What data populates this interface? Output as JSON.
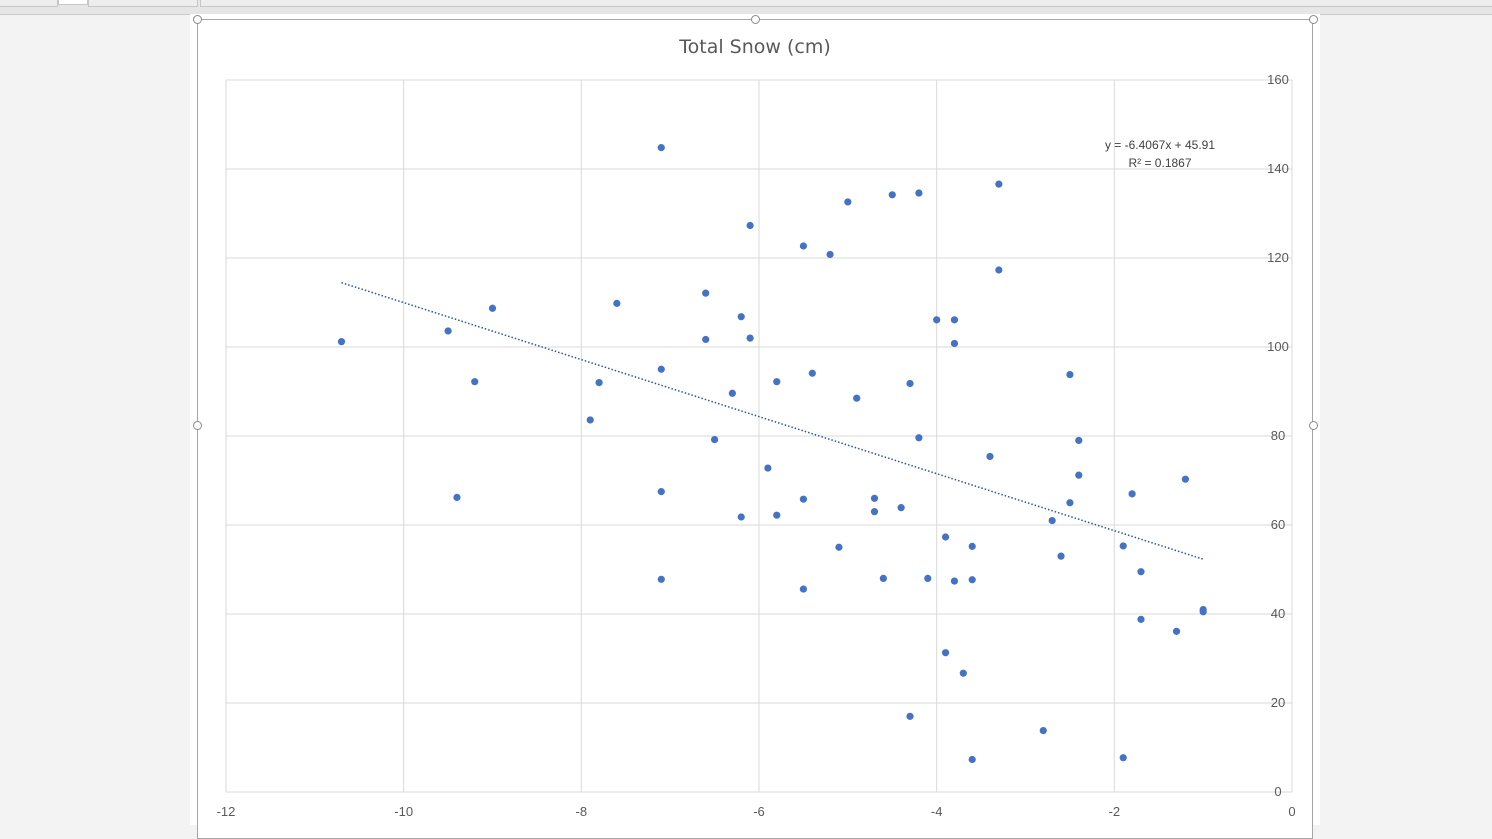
{
  "chart_data": {
    "type": "scatter",
    "title": "Total Snow (cm)",
    "xlabel": "",
    "ylabel": "",
    "xlim": [
      -12,
      0
    ],
    "ylim": [
      0,
      160
    ],
    "x_ticks": [
      -12,
      -10,
      -8,
      -6,
      -4,
      -2,
      0
    ],
    "y_ticks": [
      0,
      20,
      40,
      60,
      80,
      100,
      120,
      140,
      160
    ],
    "x_tick_labels": [
      "-12",
      "-10",
      "-8",
      "-6",
      "-4",
      "-2",
      "0"
    ],
    "y_tick_labels": [
      "0",
      "20",
      "40",
      "60",
      "80",
      "100",
      "120",
      "140",
      "160"
    ],
    "grid": true,
    "y_axis_side": "right",
    "marker_color": "#4472c4",
    "trendline": {
      "type": "linear",
      "style": "dotted",
      "color": "#2f5597",
      "slope": -6.4067,
      "intercept": 45.91,
      "x_range": [
        -10.7,
        -1.0
      ],
      "equation": "y = -6.4067x + 45.91",
      "r_squared": "R² = 0.1867"
    },
    "series": [
      {
        "points": [
          [
            -10.7,
            101.2
          ],
          [
            -9.5,
            103.6
          ],
          [
            -9.4,
            66.2
          ],
          [
            -9.2,
            92.2
          ],
          [
            -9.0,
            108.7
          ],
          [
            -7.9,
            83.6
          ],
          [
            -7.8,
            92.0
          ],
          [
            -7.6,
            109.8
          ],
          [
            -7.1,
            144.8
          ],
          [
            -7.1,
            95.0
          ],
          [
            -7.1,
            67.5
          ],
          [
            -7.1,
            47.8
          ],
          [
            -6.6,
            112.1
          ],
          [
            -6.6,
            101.7
          ],
          [
            -6.5,
            79.2
          ],
          [
            -6.3,
            89.6
          ],
          [
            -6.2,
            106.8
          ],
          [
            -6.2,
            61.8
          ],
          [
            -6.1,
            127.3
          ],
          [
            -6.1,
            102.0
          ],
          [
            -5.9,
            72.8
          ],
          [
            -5.8,
            92.2
          ],
          [
            -5.8,
            62.2
          ],
          [
            -5.5,
            122.7
          ],
          [
            -5.5,
            65.8
          ],
          [
            -5.5,
            45.6
          ],
          [
            -5.4,
            94.1
          ],
          [
            -5.2,
            120.8
          ],
          [
            -5.1,
            55.0
          ],
          [
            -5.0,
            132.6
          ],
          [
            -4.9,
            88.5
          ],
          [
            -4.7,
            66.0
          ],
          [
            -4.7,
            63.0
          ],
          [
            -4.6,
            48.0
          ],
          [
            -4.5,
            134.2
          ],
          [
            -4.4,
            63.9
          ],
          [
            -4.3,
            91.8
          ],
          [
            -4.3,
            17.0
          ],
          [
            -4.2,
            134.6
          ],
          [
            -4.2,
            79.6
          ],
          [
            -4.1,
            48.0
          ],
          [
            -4.0,
            106.1
          ],
          [
            -3.9,
            57.3
          ],
          [
            -3.9,
            31.3
          ],
          [
            -3.8,
            106.1
          ],
          [
            -3.8,
            100.8
          ],
          [
            -3.8,
            47.4
          ],
          [
            -3.7,
            26.7
          ],
          [
            -3.6,
            55.2
          ],
          [
            -3.6,
            47.7
          ],
          [
            -3.6,
            7.3
          ],
          [
            -3.4,
            75.4
          ],
          [
            -3.3,
            136.6
          ],
          [
            -3.3,
            117.3
          ],
          [
            -2.8,
            13.8
          ],
          [
            -2.7,
            61.0
          ],
          [
            -2.6,
            53.0
          ],
          [
            -2.5,
            93.8
          ],
          [
            -2.5,
            65.0
          ],
          [
            -2.4,
            79.0
          ],
          [
            -2.4,
            71.2
          ],
          [
            -1.9,
            55.3
          ],
          [
            -1.9,
            7.7
          ],
          [
            -1.8,
            67.0
          ],
          [
            -1.7,
            49.5
          ],
          [
            -1.7,
            38.8
          ],
          [
            -1.3,
            36.1
          ],
          [
            -1.2,
            70.3
          ],
          [
            -1.0,
            41.0
          ],
          [
            -1.0,
            40.5
          ]
        ]
      }
    ]
  }
}
